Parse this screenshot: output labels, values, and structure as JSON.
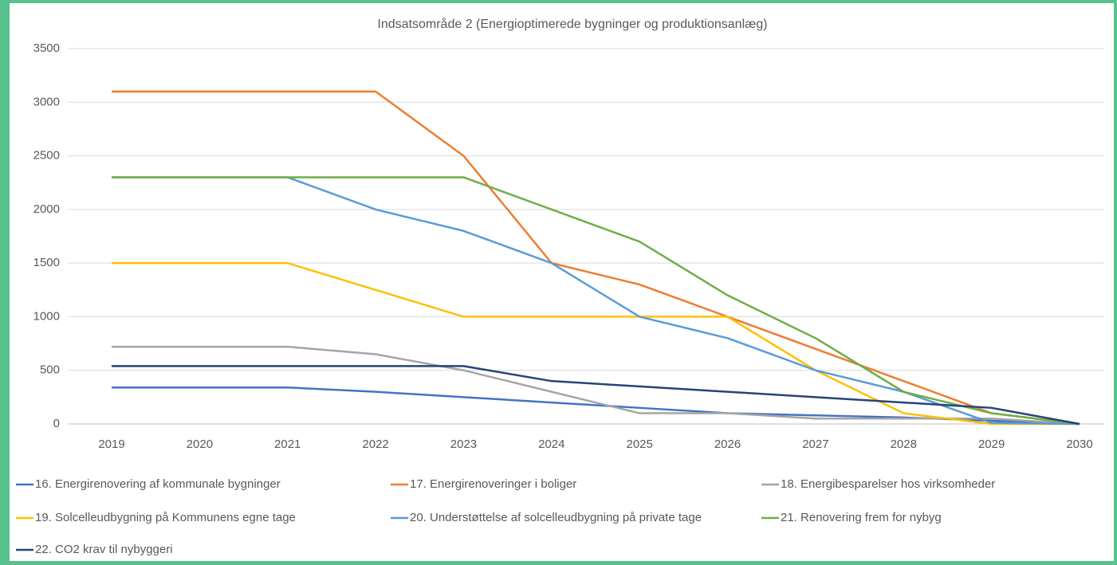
{
  "chart_data": {
    "type": "line",
    "title": "Indsatsområde 2 (Energioptimerede bygninger og produktionsanlæg)",
    "categories": [
      "2019",
      "2020",
      "2021",
      "2022",
      "2023",
      "2024",
      "2025",
      "2026",
      "2027",
      "2028",
      "2029",
      "2030"
    ],
    "series": [
      {
        "name": "16. Energirenovering af kommunale bygninger",
        "color": "#4472c4",
        "values": [
          340,
          340,
          340,
          300,
          250,
          200,
          150,
          100,
          80,
          60,
          30,
          0
        ]
      },
      {
        "name": "17. Energirenoveringer i boliger",
        "color": "#ed7d31",
        "values": [
          3100,
          3100,
          3100,
          3100,
          2500,
          1500,
          1300,
          1000,
          700,
          400,
          100,
          0
        ]
      },
      {
        "name": "18. Energibesparelser hos virksomheder",
        "color": "#a5a5a5",
        "values": [
          720,
          720,
          720,
          650,
          500,
          300,
          100,
          100,
          50,
          50,
          50,
          0
        ]
      },
      {
        "name": "19. Solcelleudbygning på Kommunens egne tage",
        "color": "#ffc000",
        "values": [
          1500,
          1500,
          1500,
          1250,
          1000,
          1000,
          1000,
          1000,
          500,
          100,
          0,
          0
        ]
      },
      {
        "name": "20. Understøttelse af solcelleudbygning på private tage",
        "color": "#5b9bd5",
        "values": [
          2300,
          2300,
          2300,
          2000,
          1800,
          1500,
          1000,
          800,
          500,
          300,
          10,
          0
        ]
      },
      {
        "name": "21. Renovering frem for nybyg",
        "color": "#70ad47",
        "values": [
          2300,
          2300,
          2300,
          2300,
          2300,
          2000,
          1700,
          1200,
          800,
          300,
          100,
          0
        ]
      },
      {
        "name": "22. CO2 krav til nybyggeri",
        "color": "#264478",
        "values": [
          540,
          540,
          540,
          540,
          540,
          400,
          350,
          300,
          250,
          200,
          150,
          0
        ]
      }
    ],
    "ylim": [
      0,
      3500
    ],
    "yticks": [
      0,
      500,
      1000,
      1500,
      2000,
      2500,
      3000,
      3500
    ],
    "grid": true,
    "legend": "bottom"
  }
}
